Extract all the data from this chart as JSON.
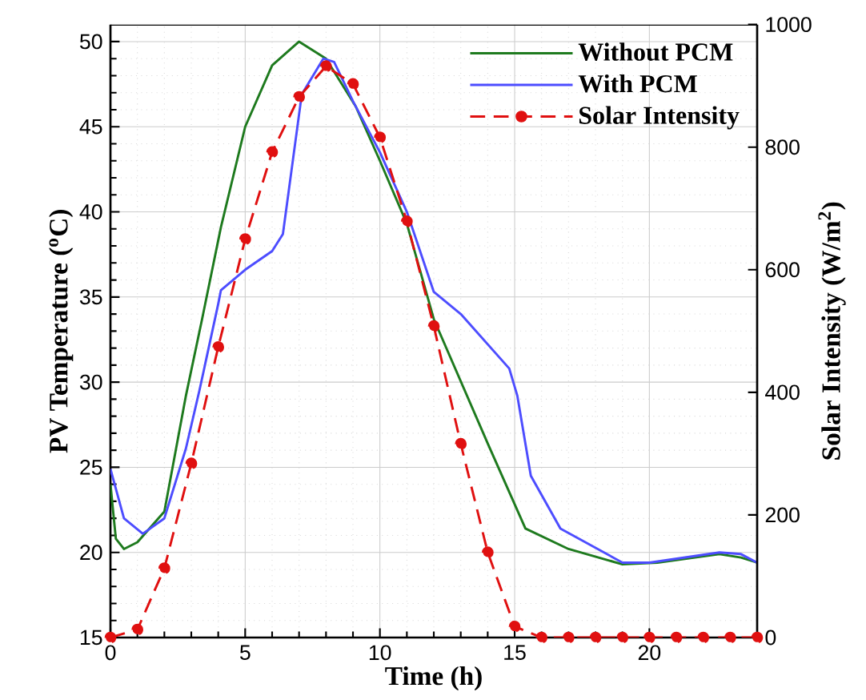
{
  "chart_data": {
    "type": "line",
    "xlabel": "Time (h)",
    "ylabel": "PV Temperature ($^{o}$C)",
    "y2label": "Solar Intensity (W/m$^{2}$)",
    "xlim": [
      0,
      24
    ],
    "xticks": [
      0,
      5,
      10,
      15,
      20
    ],
    "ylim": [
      15,
      51
    ],
    "yticks": [
      15,
      20,
      25,
      30,
      35,
      40,
      45,
      50
    ],
    "y2lim": [
      0,
      1000
    ],
    "y2ticks": [
      0,
      200,
      400,
      600,
      800,
      1000
    ],
    "grid": true,
    "legend": "top right",
    "series": [
      {
        "name": "Without PCM",
        "color": "#1e7a1e",
        "marker": "none",
        "line_style": "solid",
        "x": [
          0,
          0.2,
          0.5,
          1,
          2,
          2.8,
          3.4,
          4.1,
          5,
          6,
          7,
          8,
          9.1,
          10,
          11,
          12,
          14,
          15.4,
          17,
          19,
          20.3,
          22.6,
          23.4,
          24
        ],
        "values": [
          24.0,
          20.8,
          20.2,
          20.6,
          22.4,
          29.2,
          33.7,
          39.1,
          45.0,
          48.6,
          50.0,
          49.0,
          46.2,
          43.0,
          39.3,
          33.7,
          26.4,
          21.4,
          20.2,
          19.3,
          19.4,
          19.9,
          19.7,
          19.4
        ]
      },
      {
        "name": "With PCM",
        "color": "#4d4dff",
        "marker": "none",
        "line_style": "solid",
        "x": [
          0,
          0.5,
          1.2,
          2,
          2.8,
          3.3,
          4,
          4.1,
          5,
          6,
          6.4,
          7.1,
          7.9,
          8.3,
          9,
          10,
          11,
          12,
          13,
          14.8,
          15.1,
          15.6,
          16.7,
          19,
          20,
          22.6,
          23.4,
          24
        ],
        "values": [
          24.9,
          22.0,
          21.1,
          22.0,
          26.1,
          29.5,
          34.6,
          35.4,
          36.6,
          37.7,
          38.7,
          46.9,
          49.0,
          48.8,
          46.5,
          43.5,
          40.0,
          35.3,
          34.0,
          30.8,
          29.2,
          24.5,
          21.4,
          19.4,
          19.4,
          20.0,
          19.9,
          19.4
        ]
      },
      {
        "name": "Solar Intensity",
        "color": "#e01010",
        "marker": "circle",
        "line_style": "dashed",
        "axis": "y2",
        "x": [
          0,
          1,
          2,
          3,
          4,
          5,
          6,
          7,
          8,
          9,
          10,
          11,
          12,
          13,
          14,
          15,
          16,
          17,
          18,
          19,
          20,
          21,
          22,
          23,
          24
        ],
        "values": [
          0,
          13,
          113,
          284,
          474,
          650,
          792,
          882,
          932,
          903,
          816,
          679,
          508,
          316,
          139,
          18,
          0,
          0,
          0,
          0,
          0,
          0,
          0,
          0,
          0
        ]
      }
    ]
  }
}
